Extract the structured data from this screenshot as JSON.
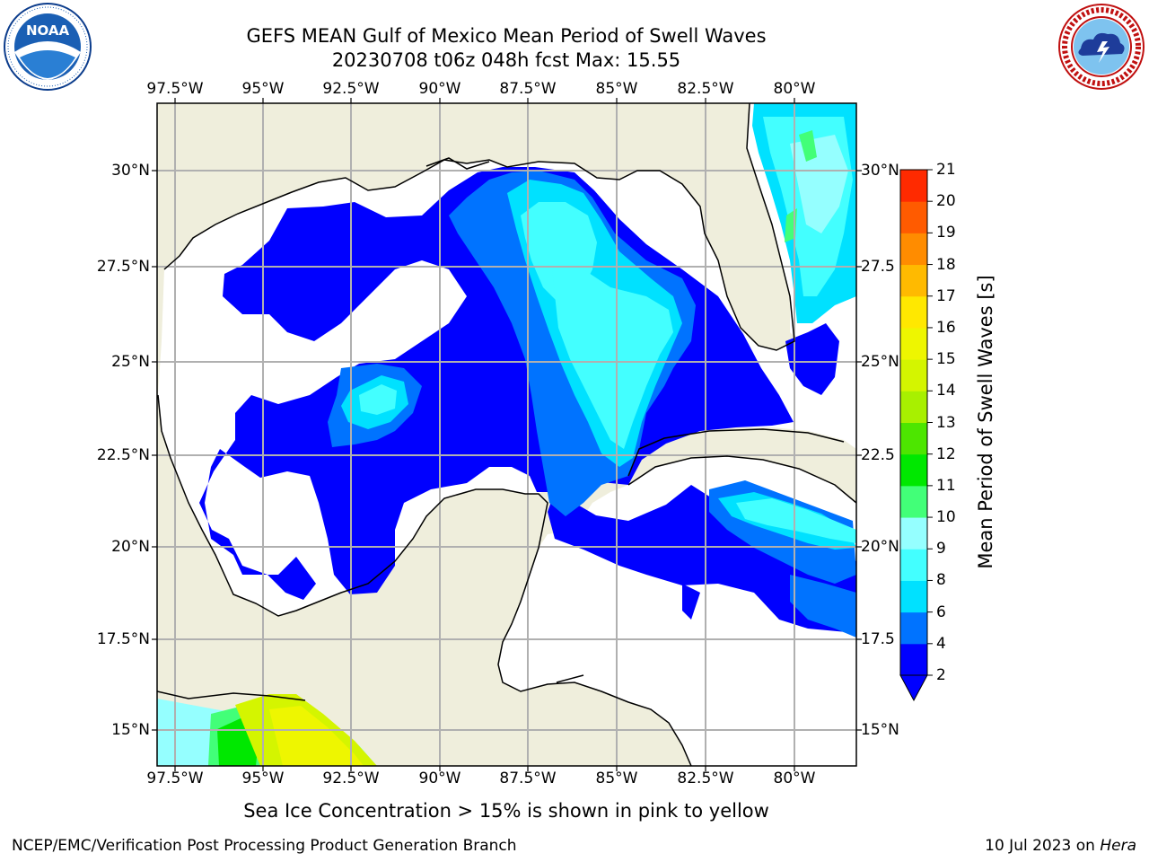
{
  "header": {
    "title_line1": "GEFS MEAN Gulf of Mexico Mean Period of Swell Waves",
    "title_line2": "20230708 t06z 048h fcst   Max: 15.55"
  },
  "logos": {
    "left": {
      "name": "noaa-logo",
      "text": "NOAA",
      "ring_text": "NATIONAL OCEANIC AND ATMOSPHERIC ADMINISTRATION · U.S. DEPARTMENT OF COMMERCE"
    },
    "right": {
      "name": "nws-logo",
      "ring_text": "NATIONAL WEATHER SERVICE"
    }
  },
  "chart_data": {
    "type": "heatmap",
    "title": "GEFS MEAN Gulf of Mexico Mean Period of Swell Waves",
    "subtitle": "20230708 t06z 048h fcst   Max: 15.55",
    "variable": "Mean Period of Swell Waves [s]",
    "max_value": 15.55,
    "xlim": [
      -98.5,
      -78.7
    ],
    "ylim": [
      14.0,
      31.8
    ],
    "x_ticks": [
      -97.5,
      -95,
      -92.5,
      -90,
      -87.5,
      -85,
      -82.5,
      -80
    ],
    "x_tick_labels": [
      "97.5°W",
      "95°W",
      "92.5°W",
      "90°W",
      "87.5°W",
      "85°W",
      "82.5°W",
      "80°W"
    ],
    "y_ticks": [
      15,
      17.5,
      20,
      22.5,
      25,
      27.5,
      30
    ],
    "y_tick_labels_left": [
      "15°N",
      "17.5°N",
      "20°N",
      "22.5°N",
      "25°N",
      "27.5°N",
      "30°N"
    ],
    "y_tick_labels_right": [
      "15°N",
      "17.5",
      "20°N",
      "22.5",
      "25°N",
      "27.5",
      "30°N"
    ],
    "grid": true,
    "colorbar": {
      "label": "Mean Period of Swell Waves [s]",
      "levels": [
        2,
        4,
        6,
        8,
        9,
        10,
        11,
        12,
        13,
        14,
        15,
        16,
        17,
        18,
        19,
        20,
        21
      ],
      "tick_labels": [
        "2",
        "4",
        "6",
        "8",
        "9",
        "10",
        "11",
        "12",
        "13",
        "14",
        "15",
        "16",
        "17",
        "18",
        "19",
        "20",
        "21"
      ],
      "colors": [
        "#0000ff",
        "#0073ff",
        "#00e1ff",
        "#43ffff",
        "#95ffff",
        "#42ff78",
        "#00e800",
        "#4de600",
        "#a8f000",
        "#d4f500",
        "#eef600",
        "#ffe800",
        "#ffba00",
        "#ff8c00",
        "#ff5b00",
        "#ff2a00",
        "#ff0000"
      ],
      "extend": "min",
      "under_color": "#0000ff"
    },
    "colors": {
      "land": "#efeedc",
      "ocean_below_min": "#ffffff",
      "coast": "#000000",
      "grid": "#b0b0b0"
    }
  },
  "note": "Sea Ice Concentration > 15% is shown in pink to yellow",
  "footer": {
    "left": "NCEP/EMC/Verification Post Processing Product Generation Branch",
    "right_prefix": "10 Jul 2023 on ",
    "right_host": "Hera"
  }
}
